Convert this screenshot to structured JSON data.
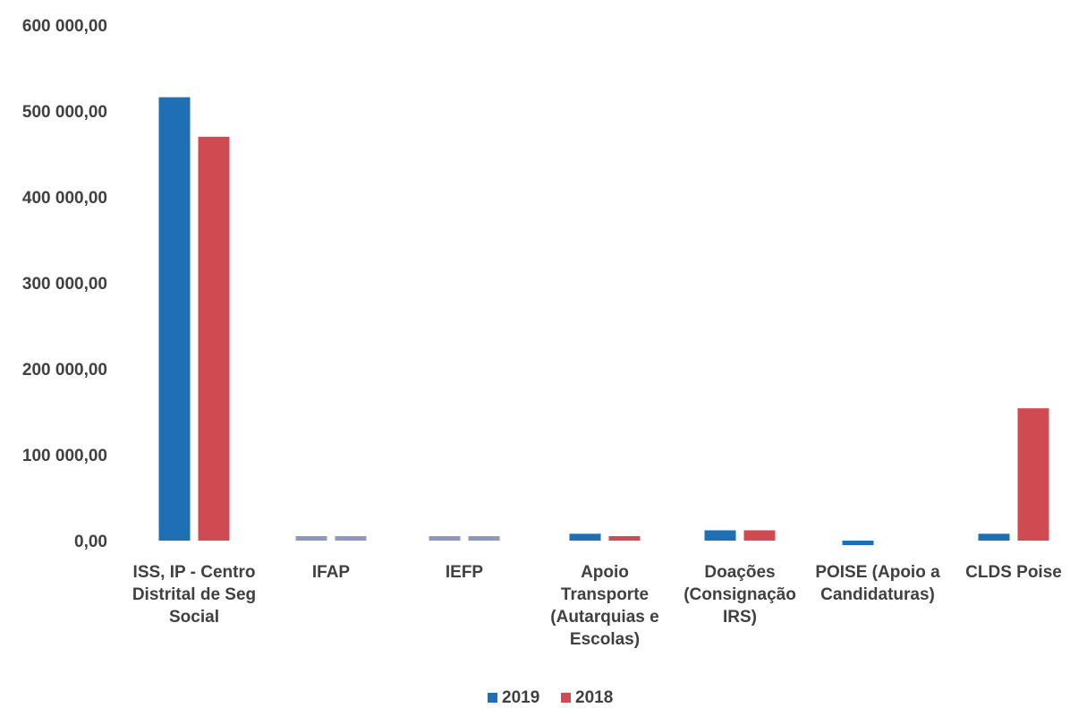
{
  "chart_data": {
    "type": "bar",
    "title": "",
    "xlabel": "",
    "ylabel": "",
    "ylim": [
      0,
      600000
    ],
    "y_tick_labels": [
      "0,00",
      "100 000,00",
      "200 000,00",
      "300 000,00",
      "400 000,00",
      "500 000,00",
      "600 000,00"
    ],
    "y_tick_values": [
      0,
      100000,
      200000,
      300000,
      400000,
      500000,
      600000
    ],
    "grid": false,
    "legend_position": "bottom",
    "categories": [
      [
        "ISS, IP - Centro",
        "Distrital de Seg",
        "Social"
      ],
      [
        "IFAP"
      ],
      [
        "IEFP"
      ],
      [
        "Apoio",
        "Transporte",
        "(Autarquias e",
        "Escolas)"
      ],
      [
        "Doações",
        "(Consignação",
        "IRS)"
      ],
      [
        "POISE (Apoio a",
        "Candidaturas)"
      ],
      [
        "CLDS Poise"
      ]
    ],
    "series": [
      {
        "name": "2019",
        "color": "#1F6FB5",
        "values": [
          516000,
          1500,
          3000,
          8000,
          12000,
          -3000,
          8000
        ]
      },
      {
        "name": "2018",
        "color": "#D04A52",
        "values": [
          470000,
          1500,
          2000,
          5000,
          12000,
          0,
          154000
        ]
      }
    ],
    "colors": {
      "low_bar": "#8E97C3",
      "axis_text": "#404040"
    }
  }
}
